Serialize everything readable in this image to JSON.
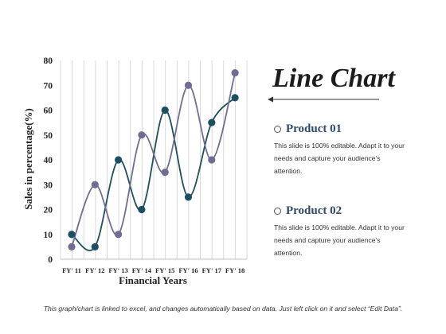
{
  "chart_data": {
    "type": "line",
    "title": "Line Chart",
    "categories": [
      "FY' 11",
      "FY' 12",
      "FY' 13",
      "FY' 14",
      "FY' 15",
      "FY' 16",
      "FY' 17",
      "FY' 18"
    ],
    "series": [
      {
        "name": "Product 01",
        "color": "#1d4f63",
        "values": [
          10,
          5,
          40,
          20,
          60,
          25,
          55,
          65
        ]
      },
      {
        "name": "Product 02",
        "color": "#6f6d93",
        "values": [
          5,
          30,
          10,
          50,
          35,
          70,
          40,
          75
        ]
      }
    ],
    "xlabel": "Financial Years",
    "ylabel": "Sales in percentage(%)",
    "ylim": [
      0,
      80
    ],
    "yticks": [
      0,
      10,
      20,
      30,
      40,
      50,
      60,
      70,
      80
    ],
    "grid": "vertical"
  },
  "legend": {
    "items": [
      {
        "label": "Product 01",
        "description": "This slide is 100% editable. Adapt it to your needs and capture your audience's attention."
      },
      {
        "label": "Product 02",
        "description": "This slide is 100% editable. Adapt it to your needs and capture your audience's attention."
      }
    ]
  },
  "footer": {
    "text": "This graph/chart is linked to excel, and changes automatically based on data. Just left click on it and select “Edit Data”."
  }
}
